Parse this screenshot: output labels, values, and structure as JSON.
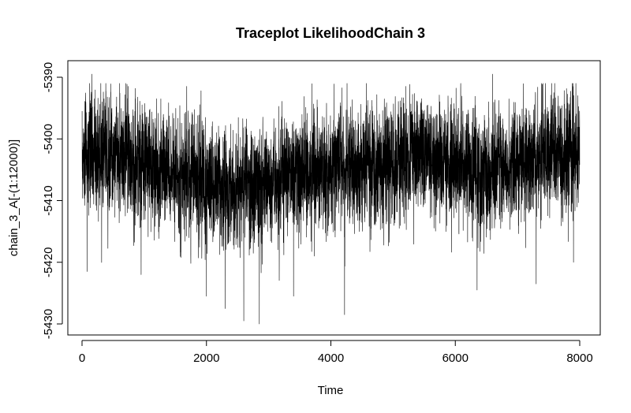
{
  "chart_data": {
    "type": "line",
    "title": "Traceplot LikelihoodChain 3",
    "xlabel": "Time",
    "ylabel": "chain_3_A[-(1:12000)]",
    "xlim": [
      0,
      8000
    ],
    "ylim": [
      -5431,
      -5388
    ],
    "x_ticks": [
      0,
      2000,
      4000,
      6000,
      8000
    ],
    "y_ticks": [
      -5430,
      -5420,
      -5410,
      -5400,
      -5390
    ],
    "grid": false,
    "legend": "none",
    "line_color": "#000000",
    "n_points": 8000,
    "x_start": 1,
    "x_step": 1,
    "segments": [
      {
        "x_range": [
          0,
          1000
        ],
        "mean": -5402.5,
        "approx_min": -5421.5,
        "approx_max": -5389.5
      },
      {
        "x_range": [
          1000,
          2000
        ],
        "mean": -5405.5,
        "approx_min": -5422,
        "approx_max": -5392
      },
      {
        "x_range": [
          2000,
          3000
        ],
        "mean": -5408,
        "approx_min": -5430,
        "approx_max": -5393
      },
      {
        "x_range": [
          3000,
          4000
        ],
        "mean": -5405.5,
        "approx_min": -5425.5,
        "approx_max": -5390.5
      },
      {
        "x_range": [
          4000,
          5000
        ],
        "mean": -5404.5,
        "approx_min": -5428.5,
        "approx_max": -5391
      },
      {
        "x_range": [
          5000,
          6000
        ],
        "mean": -5403,
        "approx_min": -5420,
        "approx_max": -5390
      },
      {
        "x_range": [
          6000,
          7000
        ],
        "mean": -5405.5,
        "approx_min": -5424.5,
        "approx_max": -5389.5
      },
      {
        "x_range": [
          7000,
          8000
        ],
        "mean": -5402.5,
        "approx_min": -5423.5,
        "approx_max": -5391
      }
    ],
    "extremes": [
      {
        "x": 80,
        "y": -5421.5
      },
      {
        "x": 160,
        "y": -5389.5
      },
      {
        "x": 950,
        "y": -5422
      },
      {
        "x": 2000,
        "y": -5425.5
      },
      {
        "x": 2300,
        "y": -5427.5
      },
      {
        "x": 2600,
        "y": -5429.5
      },
      {
        "x": 2850,
        "y": -5430
      },
      {
        "x": 3400,
        "y": -5425.5
      },
      {
        "x": 4220,
        "y": -5428.5
      },
      {
        "x": 6350,
        "y": -5424.5
      },
      {
        "x": 6600,
        "y": -5389.5
      },
      {
        "x": 7300,
        "y": -5423.5
      },
      {
        "x": 7900,
        "y": -5420
      }
    ]
  }
}
